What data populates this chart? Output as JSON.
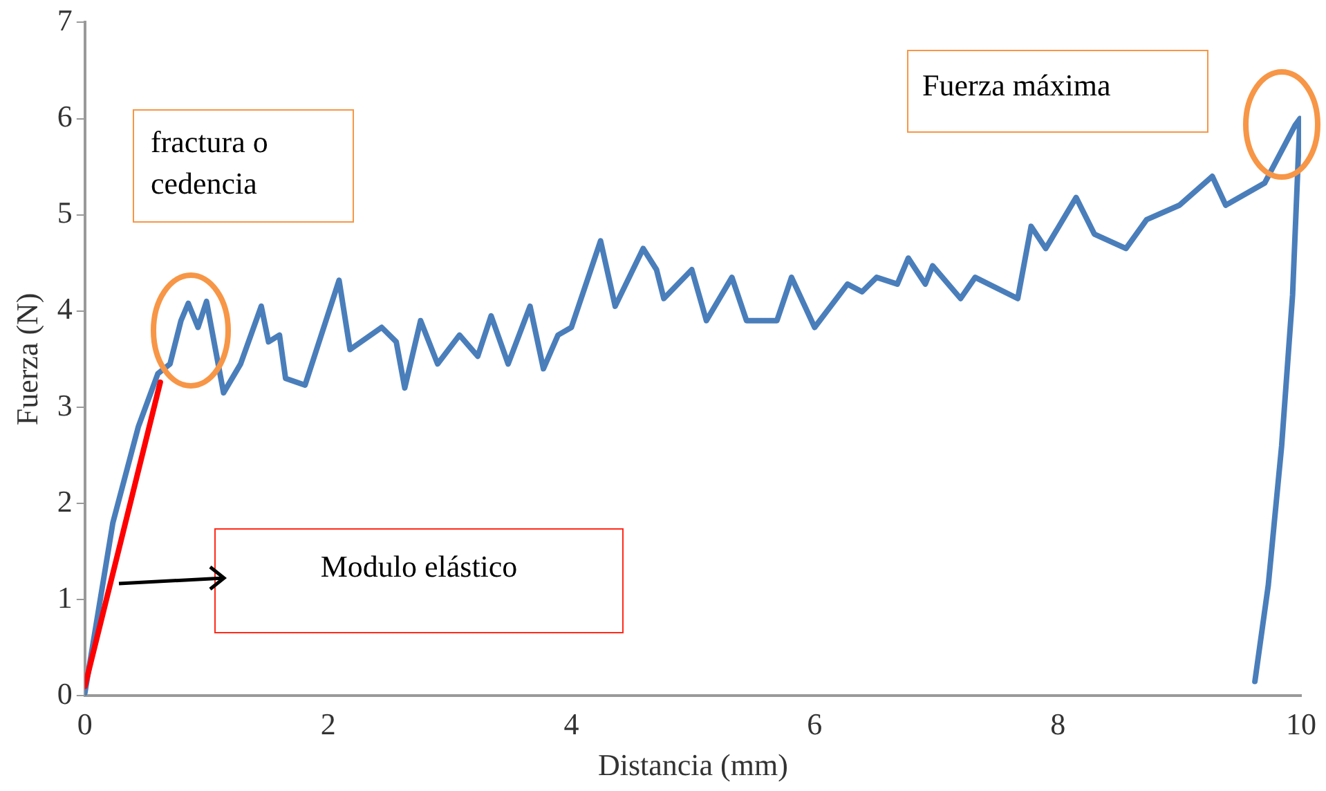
{
  "chart_data": {
    "type": "line",
    "xlabel": "Distancia (mm)",
    "ylabel": "Fuerza (N)",
    "xlim": [
      0,
      10
    ],
    "xticks": [
      0,
      2,
      4,
      6,
      8,
      10
    ],
    "ylim": [
      0,
      7
    ],
    "yticks": [
      0,
      1,
      2,
      3,
      4,
      5,
      6,
      7
    ],
    "grid": false,
    "legend": false,
    "marker": "none",
    "line_style": "solid",
    "series": [
      {
        "color": "#4a7ebb",
        "x": [
          0,
          0.23,
          0.44,
          0.6,
          0.7,
          0.79,
          0.85,
          0.93,
          1.0,
          1.14,
          1.28,
          1.45,
          1.51,
          1.6,
          1.65,
          1.81,
          2.09,
          2.18,
          2.44,
          2.56,
          2.63,
          2.76,
          2.9,
          3.08,
          3.23,
          3.34,
          3.48,
          3.66,
          3.77,
          3.89,
          4.0,
          4.24,
          4.36,
          4.59,
          4.7,
          4.76,
          4.99,
          5.11,
          5.32,
          5.44,
          5.69,
          5.81,
          6.0,
          6.27,
          6.39,
          6.51,
          6.68,
          6.77,
          6.91,
          6.97,
          7.2,
          7.32,
          7.67,
          7.78,
          7.9,
          8.15,
          8.3,
          8.56,
          8.73,
          9.0,
          9.27,
          9.38,
          9.7,
          9.95,
          9.99,
          9.93,
          9.84,
          9.73,
          9.62
        ],
        "values": [
          0.03,
          1.8,
          2.8,
          3.35,
          3.45,
          3.9,
          4.08,
          3.83,
          4.1,
          3.15,
          3.45,
          4.05,
          3.68,
          3.75,
          3.3,
          3.23,
          4.32,
          3.6,
          3.83,
          3.68,
          3.2,
          3.9,
          3.45,
          3.75,
          3.53,
          3.95,
          3.45,
          4.05,
          3.4,
          3.75,
          3.83,
          4.73,
          4.05,
          4.65,
          4.43,
          4.13,
          4.43,
          3.9,
          4.35,
          3.9,
          3.9,
          4.35,
          3.83,
          4.28,
          4.2,
          4.35,
          4.28,
          4.55,
          4.28,
          4.47,
          4.13,
          4.35,
          4.13,
          4.88,
          4.65,
          5.18,
          4.8,
          4.65,
          4.95,
          5.1,
          5.4,
          5.1,
          5.33,
          5.93,
          6.0,
          4.17,
          2.6,
          1.15,
          0.15
        ]
      },
      {
        "type": "line",
        "color": "#ff0000",
        "x": [
          0,
          0.62
        ],
        "values": [
          0.1,
          3.26
        ]
      }
    ],
    "annotations": [
      "fractura o cedencia",
      "Fuerza máxima",
      "Modulo elástico"
    ]
  }
}
